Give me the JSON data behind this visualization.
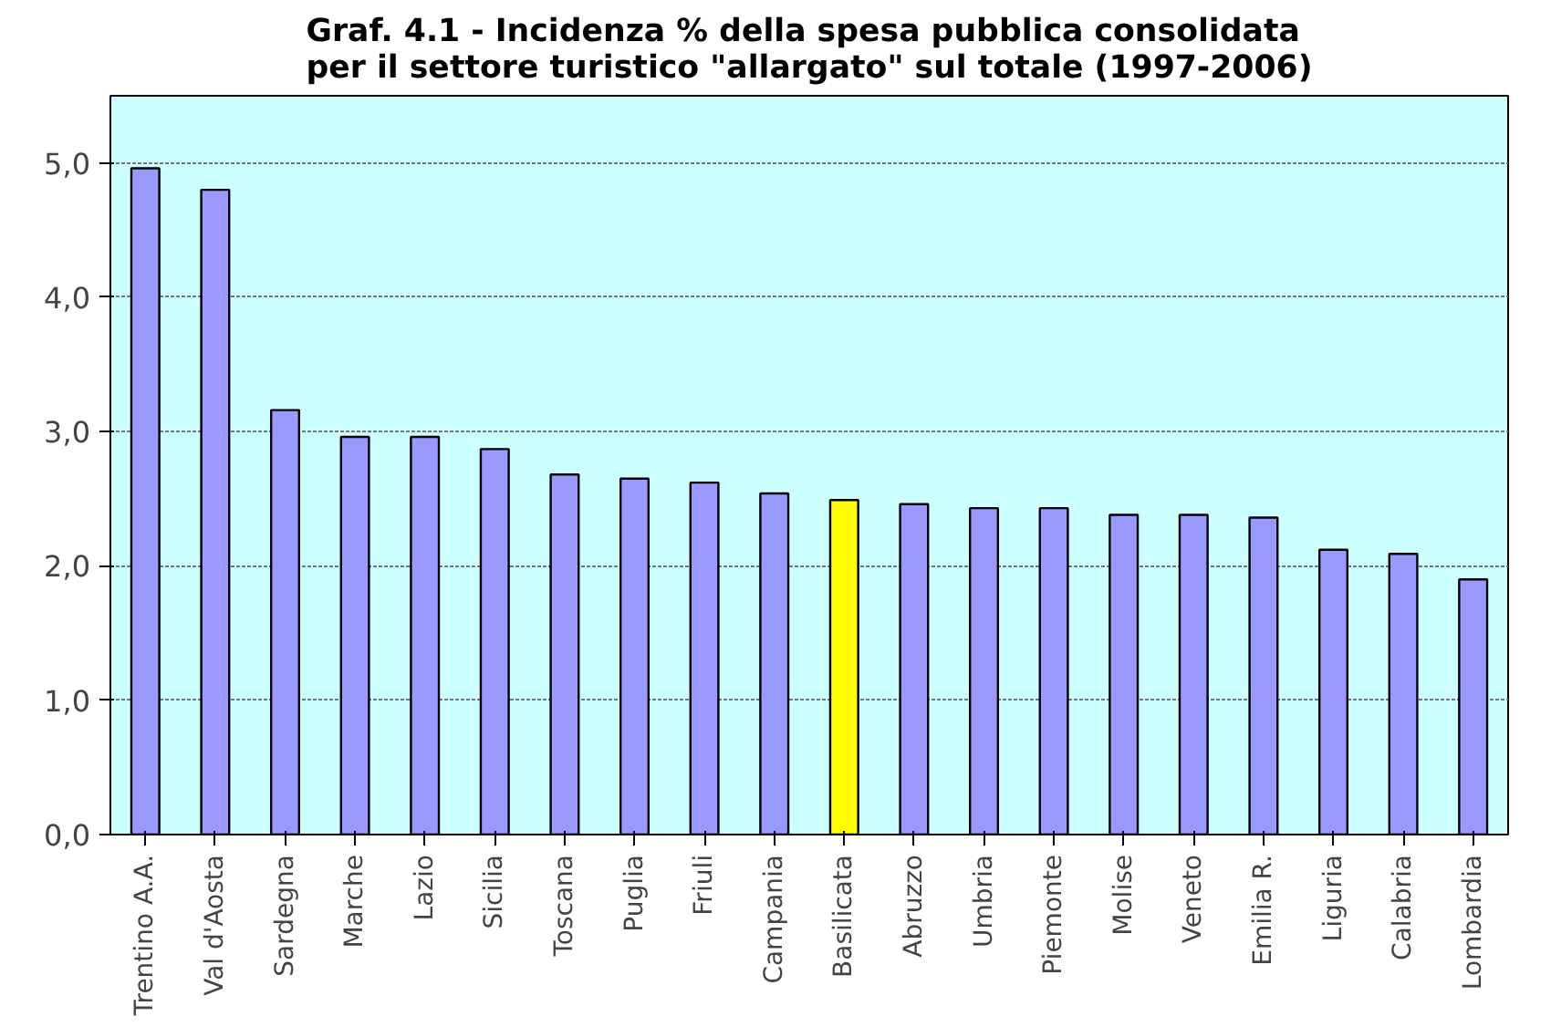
{
  "chart_data": {
    "type": "bar",
    "title": "Graf. 4.1 - Incidenza % della spesa pubblica consolidata\nper il settore turistico \"allargato\" sul totale (1997-2006)",
    "categories": [
      "Trentino A.A.",
      "Val d'Aosta",
      "Sardegna",
      "Marche",
      "Lazio",
      "Sicilia",
      "Toscana",
      "Puglia",
      "Friuli",
      "Campania",
      "Basilicata",
      "Abruzzo",
      "Umbria",
      "Piemonte",
      "Molise",
      "Veneto",
      "Emilia R.",
      "Liguria",
      "Calabria",
      "Lombardia"
    ],
    "values": [
      4.96,
      4.8,
      3.16,
      2.96,
      2.96,
      2.87,
      2.68,
      2.65,
      2.62,
      2.54,
      2.49,
      2.46,
      2.43,
      2.43,
      2.38,
      2.38,
      2.36,
      2.12,
      2.09,
      1.9
    ],
    "colors": [
      "#9999ff",
      "#9999ff",
      "#9999ff",
      "#9999ff",
      "#9999ff",
      "#9999ff",
      "#9999ff",
      "#9999ff",
      "#9999ff",
      "#9999ff",
      "#ffff00",
      "#9999ff",
      "#9999ff",
      "#9999ff",
      "#9999ff",
      "#9999ff",
      "#9999ff",
      "#9999ff",
      "#9999ff",
      "#9999ff"
    ],
    "ylim": [
      0,
      5.5
    ],
    "yticks": [
      {
        "value": 0,
        "label": "0,0"
      },
      {
        "value": 1,
        "label": "1,0"
      },
      {
        "value": 2,
        "label": "2,0"
      },
      {
        "value": 3,
        "label": "3,0"
      },
      {
        "value": 4,
        "label": "4,0"
      },
      {
        "value": 5,
        "label": "5,0"
      }
    ],
    "grid": "y"
  }
}
